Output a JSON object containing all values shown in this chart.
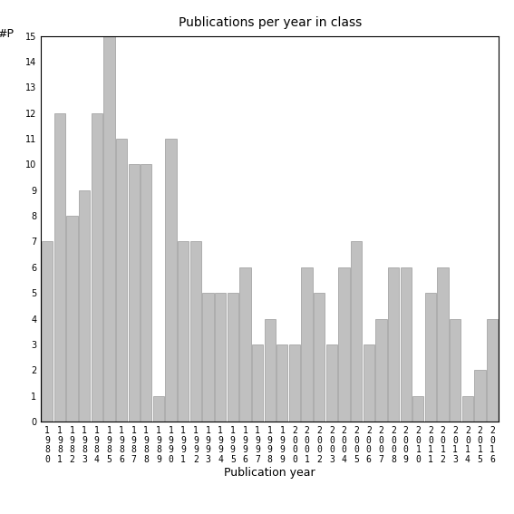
{
  "title": "Publications per year in class",
  "xlabel": "Publication year",
  "ylabel": "#P",
  "years": [
    1980,
    1981,
    1982,
    1983,
    1984,
    1985,
    1986,
    1987,
    1988,
    1989,
    1990,
    1991,
    1992,
    1993,
    1994,
    1995,
    1996,
    1997,
    1998,
    1999,
    2000,
    2001,
    2002,
    2003,
    2004,
    2005,
    2006,
    2007,
    2008,
    2009,
    2010,
    2011,
    2012,
    2013,
    2014,
    2015,
    2016
  ],
  "values": [
    7,
    12,
    8,
    9,
    12,
    15,
    11,
    10,
    10,
    1,
    11,
    7,
    7,
    5,
    5,
    5,
    6,
    3,
    4,
    3,
    3,
    6,
    5,
    3,
    6,
    7,
    3,
    4,
    6,
    6,
    1,
    5,
    6,
    4,
    1,
    2,
    4
  ],
  "bar_color": "#c0c0c0",
  "bar_edge_color": "#999999",
  "ylim": [
    0,
    15
  ],
  "yticks": [
    0,
    1,
    2,
    3,
    4,
    5,
    6,
    7,
    8,
    9,
    10,
    11,
    12,
    13,
    14,
    15
  ],
  "bg_color": "#ffffff",
  "title_fontsize": 10,
  "axis_label_fontsize": 9,
  "tick_fontsize": 7
}
